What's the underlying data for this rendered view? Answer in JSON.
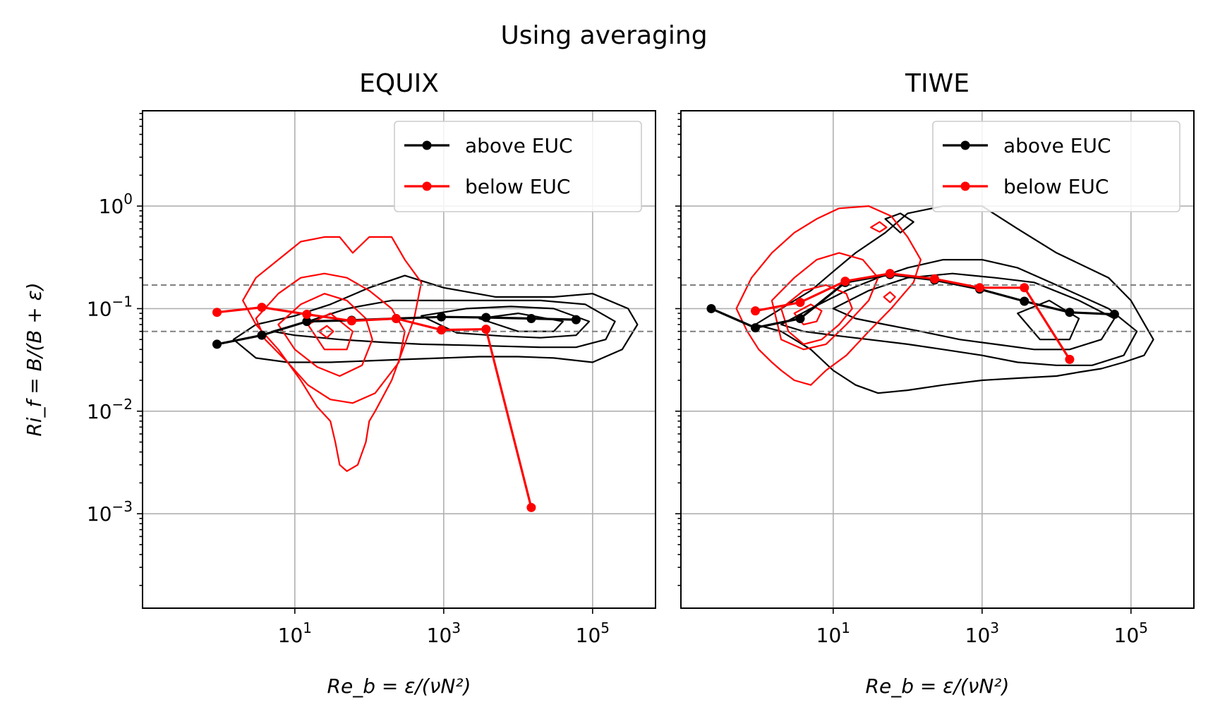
{
  "figure": {
    "suptitle": "Using averaging"
  },
  "chart_data": [
    {
      "type": "line",
      "title": "EQUIX",
      "xlabel": "Re_b = ε/(νN²)",
      "ylabel": "Ri_f = B/(B + ε)",
      "xscale": "log",
      "yscale": "log",
      "xlim": [
        0.09,
        700000
      ],
      "ylim": [
        0.00012,
        8.5
      ],
      "xticks": [
        {
          "value": 10,
          "base": "10",
          "exp": "1"
        },
        {
          "value": 1000,
          "base": "10",
          "exp": "3"
        },
        {
          "value": 100000,
          "base": "10",
          "exp": "5"
        }
      ],
      "yticks": [
        {
          "value": 0.001,
          "base": "10",
          "exp": "−3"
        },
        {
          "value": 0.01,
          "base": "10",
          "exp": "−2"
        },
        {
          "value": 0.1,
          "base": "10",
          "exp": "−1"
        },
        {
          "value": 1,
          "base": "10",
          "exp": "0"
        }
      ],
      "grid": true,
      "legend_position": "top-right",
      "reference_lines_y": [
        0.17,
        0.06
      ],
      "series": [
        {
          "name": "above EUC",
          "color": "#000000",
          "x": [
            0.9,
            3.6,
            14.5,
            58,
            230,
            930,
            3700,
            15000,
            60000
          ],
          "y": [
            0.045,
            0.055,
            0.075,
            0.077,
            0.08,
            0.083,
            0.082,
            0.08,
            0.078
          ]
        },
        {
          "name": "below EUC",
          "color": "#ff0000",
          "x": [
            0.9,
            3.6,
            14.5,
            58,
            230,
            930,
            3700,
            15000
          ],
          "y": [
            0.092,
            0.103,
            0.088,
            0.076,
            0.08,
            0.062,
            0.063,
            0.00115
          ]
        }
      ],
      "contours": [
        {
          "color": "#000000",
          "x": [
            1.5,
            3,
            10,
            30,
            100,
            300,
            1000,
            5000,
            30000,
            100000,
            300000,
            400000,
            250000,
            100000,
            30000,
            10000,
            3000,
            1000,
            300,
            100,
            30,
            8,
            3,
            1.5
          ],
          "y": [
            0.05,
            0.07,
            0.085,
            0.11,
            0.16,
            0.21,
            0.16,
            0.13,
            0.13,
            0.14,
            0.1,
            0.07,
            0.04,
            0.03,
            0.033,
            0.034,
            0.034,
            0.033,
            0.032,
            0.031,
            0.03,
            0.03,
            0.033,
            0.05
          ]
        },
        {
          "color": "#000000",
          "x": [
            5,
            15,
            50,
            200,
            800,
            3000,
            20000,
            80000,
            200000,
            150000,
            60000,
            20000,
            6000,
            2000,
            500,
            150,
            40,
            10,
            5
          ],
          "y": [
            0.06,
            0.075,
            0.1,
            0.12,
            0.12,
            0.12,
            0.12,
            0.11,
            0.075,
            0.05,
            0.042,
            0.042,
            0.043,
            0.044,
            0.045,
            0.047,
            0.05,
            0.055,
            0.06
          ]
        },
        {
          "color": "#000000",
          "x": [
            500,
            2000,
            8000,
            30000,
            90000,
            60000,
            20000,
            6000,
            1500,
            500
          ],
          "y": [
            0.085,
            0.1,
            0.105,
            0.1,
            0.075,
            0.055,
            0.052,
            0.054,
            0.058,
            0.085
          ]
        },
        {
          "color": "#000000",
          "x": [
            3000,
            10000,
            40000,
            30000,
            10000,
            3000
          ],
          "y": [
            0.08,
            0.09,
            0.075,
            0.06,
            0.06,
            0.08
          ]
        },
        {
          "color": "#ff0000",
          "x": [
            2,
            3,
            6,
            12,
            25,
            40,
            60,
            100,
            200,
            300,
            500,
            400,
            200,
            120,
            100,
            90,
            70,
            50,
            40,
            35,
            30,
            20,
            12,
            6,
            3,
            2
          ],
          "y": [
            0.12,
            0.2,
            0.3,
            0.45,
            0.5,
            0.5,
            0.35,
            0.5,
            0.5,
            0.3,
            0.18,
            0.08,
            0.02,
            0.01,
            0.008,
            0.005,
            0.003,
            0.0026,
            0.003,
            0.005,
            0.008,
            0.011,
            0.02,
            0.04,
            0.07,
            0.12
          ]
        },
        {
          "color": "#ff0000",
          "x": [
            3,
            6,
            12,
            25,
            50,
            100,
            200,
            300,
            250,
            120,
            60,
            30,
            15,
            8,
            4,
            3
          ],
          "y": [
            0.08,
            0.14,
            0.2,
            0.22,
            0.2,
            0.15,
            0.1,
            0.06,
            0.03,
            0.015,
            0.012,
            0.013,
            0.018,
            0.03,
            0.05,
            0.08
          ]
        },
        {
          "color": "#ff0000",
          "x": [
            6,
            12,
            25,
            50,
            90,
            110,
            80,
            40,
            20,
            10,
            6
          ],
          "y": [
            0.07,
            0.11,
            0.14,
            0.12,
            0.08,
            0.05,
            0.028,
            0.022,
            0.027,
            0.04,
            0.07
          ]
        },
        {
          "color": "#ff0000",
          "x": [
            15,
            30,
            60,
            50,
            25,
            15
          ],
          "y": [
            0.07,
            0.09,
            0.06,
            0.04,
            0.04,
            0.07
          ]
        },
        {
          "color": "#ff0000",
          "x": [
            21,
            27,
            33,
            27,
            21
          ],
          "y": [
            0.06,
            0.068,
            0.06,
            0.052,
            0.06
          ]
        }
      ]
    },
    {
      "type": "line",
      "title": "TIWE",
      "xlabel": "Re_b = ε/(νN²)",
      "ylabel": "",
      "xscale": "log",
      "yscale": "log",
      "xlim": [
        0.09,
        700000
      ],
      "ylim": [
        0.00012,
        8.5
      ],
      "xticks": [
        {
          "value": 10,
          "base": "10",
          "exp": "1"
        },
        {
          "value": 1000,
          "base": "10",
          "exp": "3"
        },
        {
          "value": 100000,
          "base": "10",
          "exp": "5"
        }
      ],
      "grid": true,
      "legend_position": "top-right",
      "reference_lines_y": [
        0.17,
        0.06
      ],
      "series": [
        {
          "name": "above EUC",
          "color": "#000000",
          "x": [
            0.23,
            0.9,
            3.6,
            14.5,
            58,
            230,
            930,
            3700,
            15000,
            60000
          ],
          "y": [
            0.1,
            0.065,
            0.08,
            0.18,
            0.215,
            0.19,
            0.155,
            0.118,
            0.092,
            0.088
          ]
        },
        {
          "name": "below EUC",
          "color": "#ff0000",
          "x": [
            0.9,
            3.6,
            14.5,
            58,
            230,
            930,
            3700,
            15000
          ],
          "y": [
            0.095,
            0.115,
            0.185,
            0.22,
            0.195,
            0.16,
            0.16,
            0.032
          ]
        }
      ],
      "contours": [
        {
          "color": "#000000",
          "x": [
            0.9,
            2,
            5,
            10,
            20,
            50,
            100,
            300,
            1000,
            3000,
            10000,
            50000,
            100000,
            200000,
            150000,
            80000,
            40000,
            20000,
            10000,
            3000,
            1000,
            300,
            100,
            40,
            20,
            10,
            5,
            2,
            0.9
          ],
          "y": [
            0.07,
            0.1,
            0.15,
            0.23,
            0.35,
            0.55,
            0.85,
            1,
            1,
            0.6,
            0.35,
            0.2,
            0.12,
            0.05,
            0.035,
            0.03,
            0.026,
            0.024,
            0.022,
            0.021,
            0.02,
            0.018,
            0.016,
            0.015,
            0.018,
            0.025,
            0.04,
            0.06,
            0.07
          ]
        },
        {
          "color": "#000000",
          "x": [
            2,
            5,
            15,
            40,
            100,
            300,
            1000,
            3000,
            10000,
            50000,
            120000,
            80000,
            30000,
            10000,
            3000,
            1000,
            300,
            100,
            30,
            10,
            4,
            2
          ],
          "y": [
            0.07,
            0.1,
            0.15,
            0.2,
            0.25,
            0.3,
            0.3,
            0.25,
            0.17,
            0.1,
            0.06,
            0.035,
            0.028,
            0.028,
            0.03,
            0.035,
            0.04,
            0.045,
            0.05,
            0.055,
            0.06,
            0.07
          ]
        },
        {
          "color": "#000000",
          "x": [
            10,
            30,
            100,
            400,
            1500,
            5000,
            20000,
            60000,
            40000,
            15000,
            5000,
            1500,
            500,
            150,
            50,
            20,
            10
          ],
          "y": [
            0.1,
            0.15,
            0.2,
            0.22,
            0.2,
            0.18,
            0.12,
            0.08,
            0.05,
            0.04,
            0.04,
            0.045,
            0.05,
            0.06,
            0.07,
            0.08,
            0.1
          ]
        },
        {
          "color": "#000000",
          "x": [
            3000,
            8000,
            20000,
            15000,
            6000,
            3000
          ],
          "y": [
            0.09,
            0.12,
            0.08,
            0.05,
            0.05,
            0.09
          ]
        },
        {
          "color": "#000000",
          "x": [
            50,
            80,
            120,
            80,
            50
          ],
          "y": [
            0.75,
            0.85,
            0.7,
            0.55,
            0.75
          ]
        },
        {
          "color": "#ff0000",
          "x": [
            0.5,
            0.8,
            1.5,
            3,
            6,
            12,
            30,
            60,
            100,
            150,
            120,
            60,
            30,
            15,
            8,
            5,
            3,
            2,
            1.5,
            1,
            0.7,
            0.5
          ],
          "y": [
            0.1,
            0.2,
            0.35,
            0.55,
            0.75,
            0.95,
            1,
            0.8,
            0.5,
            0.3,
            0.18,
            0.1,
            0.06,
            0.035,
            0.025,
            0.018,
            0.02,
            0.025,
            0.03,
            0.04,
            0.06,
            0.1
          ]
        },
        {
          "color": "#ff0000",
          "x": [
            1.5,
            3,
            6,
            12,
            25,
            40,
            30,
            15,
            8,
            4,
            2,
            1.5
          ],
          "y": [
            0.12,
            0.2,
            0.3,
            0.35,
            0.3,
            0.2,
            0.12,
            0.07,
            0.045,
            0.04,
            0.05,
            0.12
          ]
        },
        {
          "color": "#ff0000",
          "x": [
            2,
            4,
            8,
            15,
            18,
            12,
            7,
            4,
            2.5,
            2
          ],
          "y": [
            0.1,
            0.15,
            0.17,
            0.14,
            0.1,
            0.07,
            0.05,
            0.045,
            0.06,
            0.1
          ]
        },
        {
          "color": "#ff0000",
          "x": [
            3,
            5,
            7,
            6,
            4,
            3
          ],
          "y": [
            0.09,
            0.11,
            0.095,
            0.075,
            0.07,
            0.09
          ]
        },
        {
          "color": "#ff0000",
          "x": [
            32,
            42,
            52,
            42,
            32
          ],
          "y": [
            0.62,
            0.7,
            0.62,
            0.56,
            0.62
          ]
        },
        {
          "color": "#ff0000",
          "x": [
            48,
            58,
            68,
            58,
            48
          ],
          "y": [
            0.13,
            0.145,
            0.13,
            0.115,
            0.13
          ]
        }
      ]
    }
  ]
}
